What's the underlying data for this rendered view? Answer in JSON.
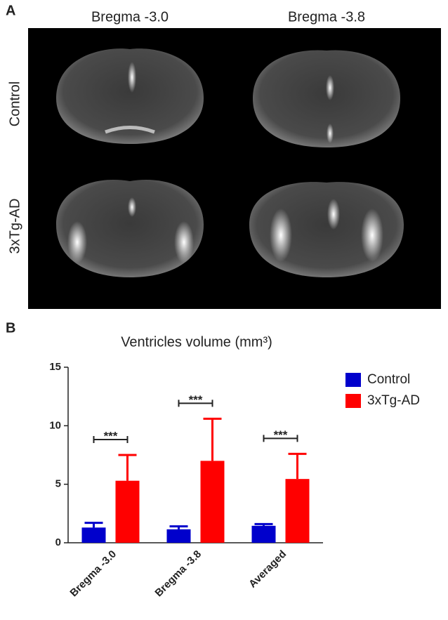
{
  "panel_a": {
    "label": "A",
    "columns": [
      "Bregma -3.0",
      "Bregma -3.8"
    ],
    "rows": [
      "Control",
      "3xTg-AD"
    ]
  },
  "chart_data": {
    "type": "bar",
    "panel_label": "B",
    "title": "Ventricles volume (mm³)",
    "categories": [
      "Bregma -3.0",
      "Bregma -3.8",
      "Averaged"
    ],
    "series": [
      {
        "name": "Control",
        "color": "#0000cc",
        "values": [
          1.3,
          1.15,
          1.45
        ],
        "errors": [
          0.4,
          0.25,
          0.15
        ]
      },
      {
        "name": "3xTg-AD",
        "color": "#ff0000",
        "values": [
          5.3,
          7.0,
          5.45
        ],
        "errors": [
          2.2,
          3.6,
          2.15
        ]
      }
    ],
    "significance": [
      "***",
      "***",
      "***"
    ],
    "ylim": [
      0,
      15
    ],
    "yticks": [
      0,
      5,
      10,
      15
    ],
    "legend": "right"
  }
}
